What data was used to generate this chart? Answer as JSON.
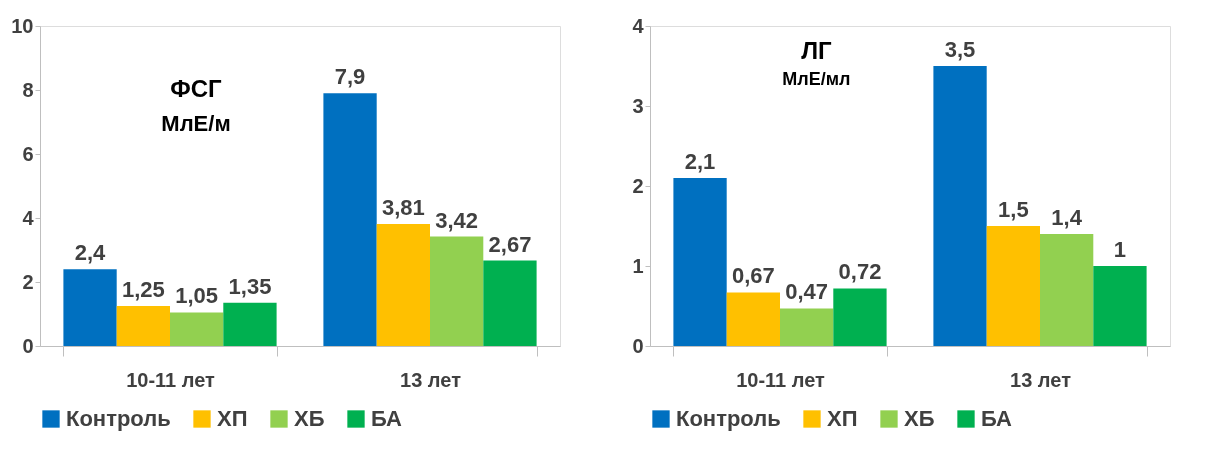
{
  "chart_data": [
    {
      "type": "bar",
      "title": "ФСГ",
      "subtitle": "МлЕ/м",
      "categories": [
        "10-11 лет",
        "13 лет"
      ],
      "series": [
        {
          "name": "Контроль",
          "color": "#0070c0",
          "values": [
            2.4,
            7.9
          ],
          "value_labels": [
            "2,4",
            "7,9"
          ]
        },
        {
          "name": "ХП",
          "color": "#ffc000",
          "values": [
            1.25,
            3.81
          ],
          "value_labels": [
            "1,25",
            "3,81"
          ]
        },
        {
          "name": "ХБ",
          "color": "#92d050",
          "values": [
            1.05,
            3.42
          ],
          "value_labels": [
            "1,05",
            "3,42"
          ]
        },
        {
          "name": "БА",
          "color": "#00b050",
          "values": [
            1.35,
            2.67
          ],
          "value_labels": [
            "1,35",
            "2,67"
          ]
        }
      ],
      "ylim": [
        0,
        10
      ],
      "yticks": [
        0,
        2,
        4,
        6,
        8,
        10
      ],
      "legend": "bottom",
      "grid": false
    },
    {
      "type": "bar",
      "title": "ЛГ",
      "subtitle": "МлЕ/мл",
      "categories": [
        "10-11 лет",
        "13 лет"
      ],
      "series": [
        {
          "name": "Контроль",
          "color": "#0070c0",
          "values": [
            2.1,
            3.5
          ],
          "value_labels": [
            "2,1",
            "3,5"
          ]
        },
        {
          "name": "ХП",
          "color": "#ffc000",
          "values": [
            0.67,
            1.5
          ],
          "value_labels": [
            "0,67",
            "1,5"
          ]
        },
        {
          "name": "ХБ",
          "color": "#92d050",
          "values": [
            0.47,
            1.4
          ],
          "value_labels": [
            "0,47",
            "1,4"
          ]
        },
        {
          "name": "БА",
          "color": "#00b050",
          "values": [
            0.72,
            1
          ],
          "value_labels": [
            "0,72",
            "1"
          ]
        }
      ],
      "ylim": [
        0,
        4
      ],
      "yticks": [
        0,
        1,
        2,
        3,
        4
      ],
      "legend": "bottom",
      "grid": false
    }
  ]
}
